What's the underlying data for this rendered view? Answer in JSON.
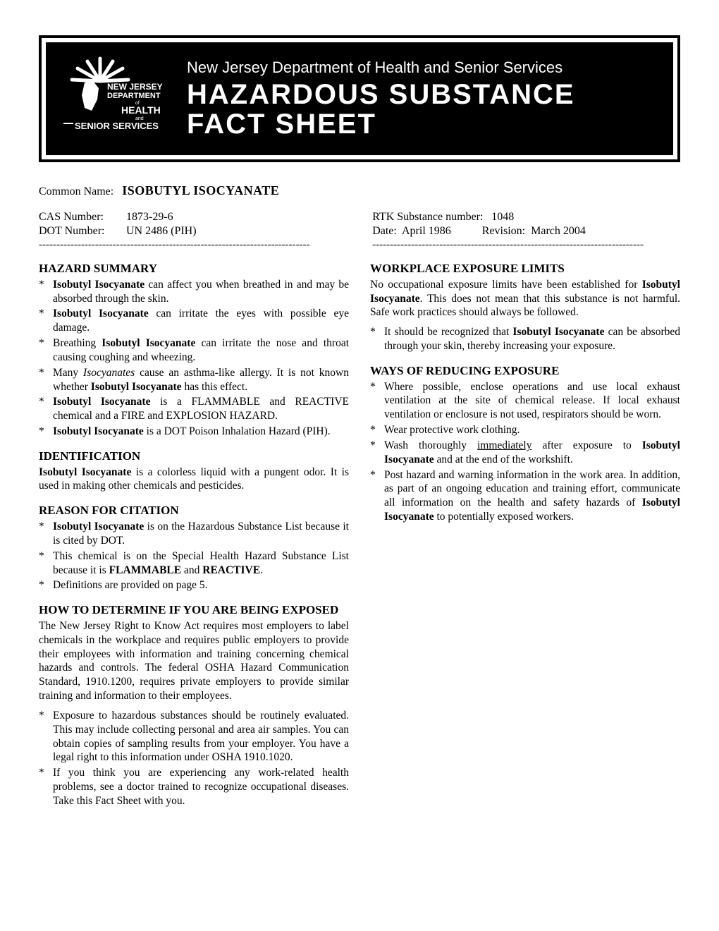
{
  "header": {
    "dept": "New Jersey Department of Health and Senior Services",
    "title1": "HAZARDOUS SUBSTANCE",
    "title2": "FACT SHEET",
    "logo_text1": "NEW JERSEY",
    "logo_text2": "DEPARTMENT",
    "logo_text3": "of",
    "logo_text4": "HEALTH",
    "logo_text5": "and",
    "logo_text6": "SENIOR SERVICES"
  },
  "common": {
    "label": "Common Name:",
    "name": "ISOBUTYL ISOCYANATE"
  },
  "meta_left": {
    "cas_label": "CAS Number:",
    "cas_value": "1873-29-6",
    "dot_label": "DOT Number:",
    "dot_value": "UN 2486 (PIH)"
  },
  "meta_right": {
    "rtk_label": "RTK Substance number:",
    "rtk_value": "1048",
    "date_label": "Date:",
    "date_value": "April 1986",
    "rev_label": "Revision:",
    "rev_value": "March 2004"
  },
  "dash_line": "-----------------------------------------------------------------------------",
  "left_col": {
    "hazard_summary": {
      "heading": "HAZARD SUMMARY",
      "items": [
        "<b>Isobutyl Isocyanate</b> can affect you when breathed in and may be absorbed through the skin.",
        "<b>Isobutyl Isocyanate</b> can irritate the eyes with possible eye damage.",
        "Breathing <b>Isobutyl Isocyanate</b> can irritate the nose and throat causing coughing and wheezing.",
        "Many <i>Isocyanates</i> cause an asthma-like allergy.  It is not known whether <b>Isobutyl Isocyanate</b> has this effect.",
        "<b>Isobutyl Isocyanate</b> is a FLAMMABLE and REACTIVE chemical and a FIRE and EXPLOSION HAZARD.",
        "<b>Isobutyl Isocyanate</b> is a DOT Poison Inhalation Hazard (PIH)."
      ]
    },
    "identification": {
      "heading": "IDENTIFICATION",
      "text": "<b>Isobutyl Isocyanate</b> is a colorless liquid with a pungent odor. It is used in making other chemicals and pesticides."
    },
    "reason": {
      "heading": "REASON FOR CITATION",
      "items": [
        "<b>Isobutyl Isocyanate</b> is on the Hazardous Substance List because it is cited by DOT.",
        "This chemical is on the Special Health Hazard Substance List because it is <b>FLAMMABLE</b> and  <b>REACTIVE</b>.",
        "Definitions are provided on page 5."
      ]
    },
    "determine": {
      "heading": "HOW TO DETERMINE IF YOU ARE BEING EXPOSED",
      "text": "The New Jersey Right to Know Act requires most employers to label chemicals in the workplace and requires public employers to provide their employees with information and training concerning chemical hazards and controls.  The federal OSHA Hazard Communication Standard, 1910.1200, requires private employers to provide similar training and information to their employees.",
      "items": [
        "Exposure to hazardous substances should be routinely evaluated. This may include collecting personal and area air samples.  You can obtain copies of sampling results from your employer. You have a legal right to this information under OSHA 1910.1020.",
        "If you think you are experiencing any work-related health problems, see a doctor trained to recognize occupational diseases.  Take this Fact Sheet with you."
      ]
    }
  },
  "right_col": {
    "limits": {
      "heading": "WORKPLACE EXPOSURE LIMITS",
      "text": "No occupational exposure limits have been established for <b>Isobutyl Isocyanate</b>.  This does not mean that this substance is not harmful.  Safe work practices should always be followed.",
      "items": [
        "It should be recognized that <b>Isobutyl Isocyanate</b> can be absorbed through your skin, thereby increasing your exposure."
      ]
    },
    "reducing": {
      "heading": "WAYS OF REDUCING EXPOSURE",
      "items": [
        "Where possible, enclose operations and use local exhaust ventilation at the site of chemical release.  If local exhaust ventilation or enclosure is not used, respirators should be worn.",
        "Wear protective work clothing.",
        "Wash thoroughly <span class=\"u\">immediately</span> after exposure to <b>Isobutyl Isocyanate</b> and at the end of the workshift.",
        "Post hazard and warning information in the work area.  In addition, as part of an ongoing education and training effort, communicate all information on the health and safety hazards of <b>Isobutyl Isocyanate</b> to potentially exposed workers."
      ]
    }
  }
}
